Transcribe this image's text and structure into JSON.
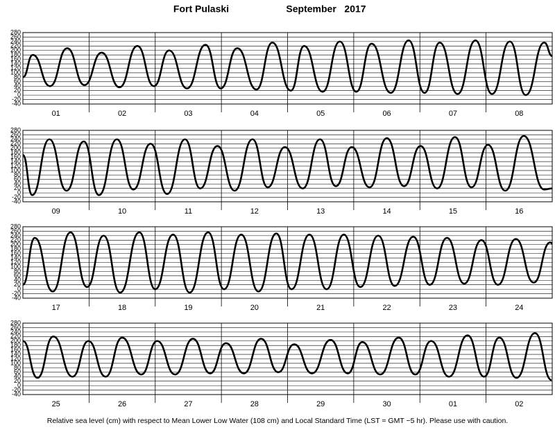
{
  "header": {
    "station": "Fort Pulaski",
    "month": "September   2017"
  },
  "footer": "Relative sea level (cm) with respect to Mean Lower Low Water (108 cm) and Local Standard Time (LST = GMT −5 hr). Please use with caution.",
  "chart_data": [
    {
      "type": "line",
      "color": "#000000",
      "xlim": [
        0,
        8
      ],
      "ylim": [
        -40,
        280
      ],
      "yticks": [
        -40,
        -20,
        0,
        20,
        40,
        60,
        80,
        100,
        120,
        140,
        160,
        180,
        200,
        220,
        240,
        260,
        280
      ],
      "categories": [
        "01",
        "02",
        "03",
        "04",
        "05",
        "06",
        "07",
        "08"
      ],
      "x": [
        0,
        0.15,
        0.41,
        0.67,
        0.93,
        1.19,
        1.46,
        1.73,
        1.98,
        2.21,
        2.48,
        2.76,
        2.99,
        3.24,
        3.53,
        3.77,
        4.05,
        4.25,
        4.53,
        4.79,
        5.04,
        5.27,
        5.56,
        5.83,
        6.07,
        6.3,
        6.57,
        6.84,
        7.09,
        7.36,
        7.6,
        7.88,
        8
      ],
      "values": [
        80,
        180,
        40,
        210,
        45,
        190,
        35,
        220,
        40,
        200,
        30,
        225,
        30,
        210,
        25,
        235,
        20,
        220,
        15,
        240,
        15,
        230,
        10,
        245,
        10,
        235,
        5,
        245,
        5,
        240,
        0,
        235,
        175
      ]
    },
    {
      "type": "line",
      "color": "#000000",
      "xlim": [
        0,
        8
      ],
      "ylim": [
        -40,
        280
      ],
      "yticks": [
        -40,
        -20,
        0,
        20,
        40,
        60,
        80,
        100,
        120,
        140,
        160,
        180,
        200,
        220,
        240,
        260,
        280
      ],
      "categories": [
        "09",
        "10",
        "11",
        "12",
        "13",
        "14",
        "15",
        "16"
      ],
      "x": [
        0,
        0.14,
        0.4,
        0.66,
        0.92,
        1.15,
        1.42,
        1.67,
        1.93,
        2.18,
        2.45,
        2.68,
        2.94,
        3.2,
        3.47,
        3.7,
        3.96,
        4.23,
        4.49,
        4.73,
        4.97,
        5.24,
        5.5,
        5.76,
        6.01,
        6.26,
        6.53,
        6.78,
        7.03,
        7.29,
        7.57,
        7.88,
        8
      ],
      "values": [
        170,
        -10,
        240,
        10,
        230,
        -10,
        240,
        15,
        220,
        -5,
        240,
        20,
        210,
        10,
        240,
        25,
        205,
        20,
        240,
        30,
        205,
        25,
        245,
        30,
        210,
        20,
        250,
        25,
        215,
        10,
        255,
        15,
        20
      ]
    },
    {
      "type": "line",
      "color": "#000000",
      "xlim": [
        0,
        8
      ],
      "ylim": [
        -40,
        280
      ],
      "yticks": [
        -40,
        -20,
        0,
        20,
        40,
        60,
        80,
        100,
        120,
        140,
        160,
        180,
        200,
        220,
        240,
        260,
        280
      ],
      "categories": [
        "17",
        "18",
        "19",
        "20",
        "21",
        "22",
        "23",
        "24"
      ],
      "x": [
        0,
        0.18,
        0.45,
        0.72,
        0.97,
        1.22,
        1.47,
        1.76,
        2.0,
        2.27,
        2.52,
        2.8,
        3.04,
        3.3,
        3.56,
        3.83,
        4.06,
        4.33,
        4.59,
        4.85,
        5.1,
        5.37,
        5.62,
        5.9,
        6.15,
        6.41,
        6.67,
        6.93,
        7.18,
        7.45,
        7.72,
        7.97,
        8
      ],
      "values": [
        20,
        230,
        -10,
        255,
        10,
        240,
        -15,
        255,
        0,
        245,
        -15,
        255,
        0,
        245,
        -10,
        250,
        0,
        245,
        0,
        245,
        10,
        240,
        15,
        235,
        20,
        230,
        25,
        220,
        20,
        225,
        30,
        210,
        205
      ]
    },
    {
      "type": "line",
      "color": "#000000",
      "xlim": [
        0,
        8
      ],
      "ylim": [
        -40,
        280
      ],
      "yticks": [
        -40,
        -20,
        0,
        20,
        40,
        60,
        80,
        100,
        120,
        140,
        160,
        180,
        200,
        220,
        240,
        260,
        280
      ],
      "categories": [
        "25",
        "26",
        "27",
        "28",
        "29",
        "30",
        "01",
        "02"
      ],
      "x": [
        0,
        0.22,
        0.46,
        0.75,
        0.99,
        1.25,
        1.5,
        1.79,
        2.03,
        2.3,
        2.57,
        2.83,
        3.07,
        3.34,
        3.6,
        3.86,
        4.1,
        4.37,
        4.65,
        4.91,
        5.13,
        5.4,
        5.68,
        5.93,
        6.17,
        6.44,
        6.72,
        6.97,
        7.2,
        7.46,
        7.74,
        7.99
      ],
      "values": [
        200,
        35,
        220,
        40,
        200,
        40,
        215,
        50,
        200,
        50,
        210,
        55,
        190,
        55,
        210,
        60,
        185,
        55,
        205,
        55,
        195,
        50,
        215,
        50,
        200,
        40,
        225,
        40,
        215,
        35,
        235,
        25
      ]
    }
  ]
}
